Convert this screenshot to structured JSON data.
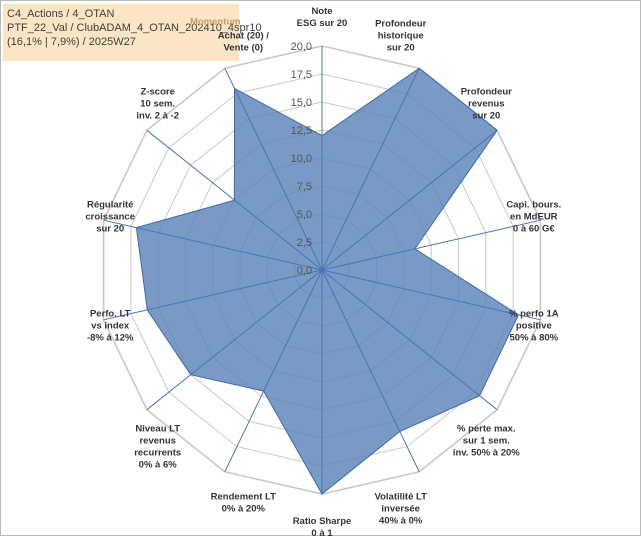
{
  "info_box": {
    "line1": "C4_Actions / 4_OTAN",
    "line2": "PTF_22_Val / ClubADAM_4_OTAN_202410_4spr10",
    "line3": "(16,1% | 7,9%) / 2025W27"
  },
  "chart_data": {
    "type": "radar",
    "rmin": 0,
    "rmax": 20,
    "tick_values": [
      0,
      2.5,
      5,
      7.5,
      10,
      12.5,
      15,
      17.5,
      20
    ],
    "tick_labels": [
      "0,0",
      "2,5",
      "5,0",
      "7,5",
      "10,0",
      "12,5",
      "15,0",
      "17,5",
      "20,0"
    ],
    "grid": true,
    "series_fill": "#5b84b8",
    "series_stroke": "#3d6ba8",
    "grid_color": "#c8c8c8",
    "axis_color": "#4a74b8",
    "series": [
      {
        "name": "Momentum",
        "values": [
          12.0,
          20.0,
          20.0,
          8.5,
          18.0,
          18.0,
          16.0,
          20.0,
          12.0,
          15.0,
          16.0,
          17.0,
          10.0,
          18.0
        ]
      }
    ],
    "axes": [
      [
        "Note",
        "ESG sur 20"
      ],
      [
        "Profondeur",
        "historique",
        "sur 20"
      ],
      [
        "Profondeur",
        "revenus",
        "sur 20"
      ],
      [
        "Capi. bours.",
        "en MdEUR",
        "0 à 60 G€"
      ],
      [
        "% perfo 1A",
        "positive",
        "50% à 80%"
      ],
      [
        "% perte max.",
        "sur 1 sem.",
        "inv. 50% à 20%"
      ],
      [
        "Volatilité LT",
        "inversée",
        "40% à 0%"
      ],
      [
        "Ratio Sharpe",
        "0 à 1"
      ],
      [
        "Rendement LT",
        "0% à 20%"
      ],
      [
        "Niveau LT",
        "revenus",
        "recurrents",
        "0% à 6%"
      ],
      [
        "Perfo. LT",
        "vs index",
        "-8% à 12%"
      ],
      [
        "Régularité",
        "croissance",
        "sur 20"
      ],
      [
        "Z-score",
        "10 sem.",
        "inv. 2 à -2"
      ],
      [
        "Achat (20) /",
        "Vente (0)"
      ]
    ]
  }
}
